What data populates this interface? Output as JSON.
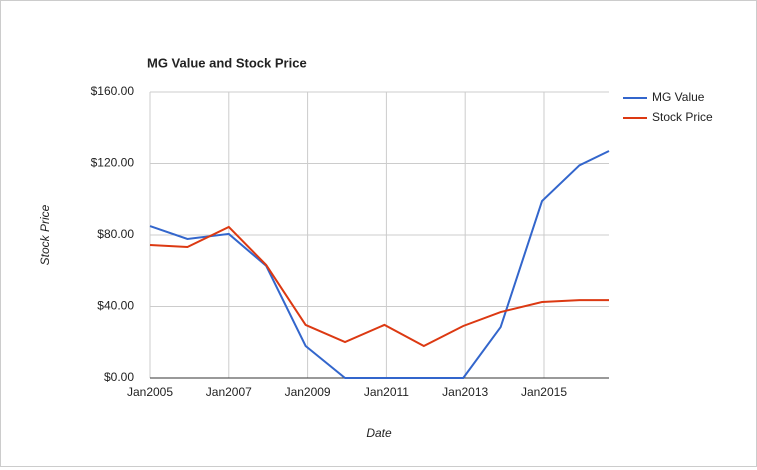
{
  "chart_data": {
    "type": "line",
    "title": "MG Value and Stock Price",
    "x_label": "Date",
    "y_label": "Stock Price",
    "x": [
      2005,
      2005.95,
      2007,
      2007.95,
      2008.95,
      2009.95,
      2010.95,
      2011.95,
      2012.95,
      2013.9,
      2014.95,
      2015.9,
      2016.65
    ],
    "series": [
      {
        "name": "MG Value",
        "color": "#3366cc",
        "values": [
          85,
          77.8,
          80.6,
          62.7,
          17.9,
          0,
          0,
          0,
          0,
          28.5,
          99,
          119,
          127
        ]
      },
      {
        "name": "Stock Price",
        "color": "#dc3912",
        "values": [
          74.4,
          73.3,
          84.5,
          63.2,
          29.7,
          20.1,
          29.7,
          17.9,
          29.1,
          36.9,
          42.5,
          43.6,
          43.6
        ]
      }
    ],
    "xlim": [
      2005,
      2016.65
    ],
    "xticks": [
      {
        "value": 2005,
        "label": "Jan2005"
      },
      {
        "value": 2007,
        "label": "Jan2007"
      },
      {
        "value": 2009,
        "label": "Jan2009"
      },
      {
        "value": 2011,
        "label": "Jan2011"
      },
      {
        "value": 2013,
        "label": "Jan2013"
      },
      {
        "value": 2015,
        "label": "Jan2015"
      }
    ],
    "ylim": [
      0,
      160
    ],
    "yticks": [
      {
        "value": 0,
        "label": "$0.00"
      },
      {
        "value": 40,
        "label": "$40.00"
      },
      {
        "value": 80,
        "label": "$80.00"
      },
      {
        "value": 120,
        "label": "$120.00"
      },
      {
        "value": 160,
        "label": "$160.00"
      }
    ],
    "grid": true,
    "legend": "right"
  }
}
